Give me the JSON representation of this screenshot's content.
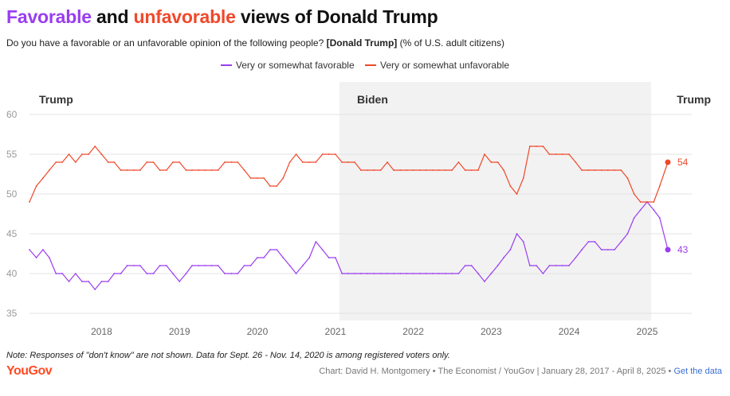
{
  "title": {
    "part1": "Favorable",
    "part2": " and ",
    "part3": "unfavorable",
    "part4": " views of Donald Trump"
  },
  "subtitle": {
    "pre": "Do you have a favorable or an unfavorable opinion of the following people? ",
    "bold": "[Donald Trump]",
    "post": " (% of U.S. adult citizens)"
  },
  "colors": {
    "favorable": "#9a3df0",
    "unfavorable": "#f0482a",
    "shade": "#f2f2f2",
    "grid": "#e3e3e3",
    "tick": "#9a9a9a"
  },
  "footer": {
    "note": "Note: Responses of \"don't know\" are not shown. Data for Sept. 26 - Nov. 14, 2020 is among registered voters only.",
    "brand": "YouGov",
    "credit": "Chart: David H. Montgomery • The Economist / YouGov | January 28, 2017 - April 8, 2025 • ",
    "link": "Get the data"
  },
  "chart_data": {
    "type": "line",
    "x_range": [
      "2017-01-28",
      "2025-04-08"
    ],
    "ylim": [
      35,
      60
    ],
    "y_ticks": [
      35,
      40,
      45,
      50,
      55,
      60
    ],
    "x_ticks": [
      "2018",
      "2019",
      "2020",
      "2021",
      "2022",
      "2023",
      "2024",
      "2025"
    ],
    "grid": true,
    "legend_position": "top",
    "periods": [
      {
        "label": "Trump",
        "start": "2017-01-28",
        "end": "2021-01-20",
        "shaded": false
      },
      {
        "label": "Biden",
        "start": "2021-01-20",
        "end": "2025-01-20",
        "shaded": true
      },
      {
        "label": "Trump",
        "start": "2025-01-20",
        "end": "2025-04-08",
        "shaded": false
      }
    ],
    "end_labels": {
      "favorable": "43",
      "unfavorable": "54"
    },
    "series": [
      {
        "name": "Very or somewhat favorable",
        "key": "favorable",
        "points": [
          [
            "2017-01-28",
            43
          ],
          [
            "2017-03-01",
            42
          ],
          [
            "2017-04-01",
            43
          ],
          [
            "2017-05-01",
            42
          ],
          [
            "2017-06-01",
            40
          ],
          [
            "2017-07-01",
            40
          ],
          [
            "2017-08-01",
            39
          ],
          [
            "2017-09-01",
            40
          ],
          [
            "2017-10-01",
            39
          ],
          [
            "2017-11-01",
            39
          ],
          [
            "2017-12-01",
            38
          ],
          [
            "2018-01-01",
            39
          ],
          [
            "2018-02-01",
            39
          ],
          [
            "2018-03-01",
            40
          ],
          [
            "2018-04-01",
            40
          ],
          [
            "2018-05-01",
            41
          ],
          [
            "2018-06-01",
            41
          ],
          [
            "2018-07-01",
            41
          ],
          [
            "2018-08-01",
            40
          ],
          [
            "2018-09-01",
            40
          ],
          [
            "2018-10-01",
            41
          ],
          [
            "2018-11-01",
            41
          ],
          [
            "2018-12-01",
            40
          ],
          [
            "2019-01-01",
            39
          ],
          [
            "2019-02-01",
            40
          ],
          [
            "2019-03-01",
            41
          ],
          [
            "2019-04-01",
            41
          ],
          [
            "2019-05-01",
            41
          ],
          [
            "2019-06-01",
            41
          ],
          [
            "2019-07-01",
            41
          ],
          [
            "2019-08-01",
            40
          ],
          [
            "2019-09-01",
            40
          ],
          [
            "2019-10-01",
            40
          ],
          [
            "2019-11-01",
            41
          ],
          [
            "2019-12-01",
            41
          ],
          [
            "2020-01-01",
            42
          ],
          [
            "2020-02-01",
            42
          ],
          [
            "2020-03-01",
            43
          ],
          [
            "2020-04-01",
            43
          ],
          [
            "2020-05-01",
            42
          ],
          [
            "2020-06-01",
            41
          ],
          [
            "2020-07-01",
            40
          ],
          [
            "2020-08-01",
            41
          ],
          [
            "2020-09-01",
            42
          ],
          [
            "2020-10-01",
            44
          ],
          [
            "2020-11-01",
            43
          ],
          [
            "2020-12-01",
            42
          ],
          [
            "2021-01-01",
            42
          ],
          [
            "2021-02-01",
            40
          ],
          [
            "2021-03-01",
            40
          ],
          [
            "2021-04-01",
            40
          ],
          [
            "2021-05-01",
            40
          ],
          [
            "2021-06-01",
            40
          ],
          [
            "2021-07-01",
            40
          ],
          [
            "2021-08-01",
            40
          ],
          [
            "2021-09-01",
            40
          ],
          [
            "2021-10-01",
            40
          ],
          [
            "2021-11-01",
            40
          ],
          [
            "2021-12-01",
            40
          ],
          [
            "2022-01-01",
            40
          ],
          [
            "2022-02-01",
            40
          ],
          [
            "2022-03-01",
            40
          ],
          [
            "2022-04-01",
            40
          ],
          [
            "2022-05-01",
            40
          ],
          [
            "2022-06-01",
            40
          ],
          [
            "2022-07-01",
            40
          ],
          [
            "2022-08-01",
            40
          ],
          [
            "2022-09-01",
            41
          ],
          [
            "2022-10-01",
            41
          ],
          [
            "2022-11-01",
            40
          ],
          [
            "2022-12-01",
            39
          ],
          [
            "2023-01-01",
            40
          ],
          [
            "2023-02-01",
            41
          ],
          [
            "2023-03-01",
            42
          ],
          [
            "2023-04-01",
            43
          ],
          [
            "2023-05-01",
            45
          ],
          [
            "2023-06-01",
            44
          ],
          [
            "2023-07-01",
            41
          ],
          [
            "2023-08-01",
            41
          ],
          [
            "2023-09-01",
            40
          ],
          [
            "2023-10-01",
            41
          ],
          [
            "2023-11-01",
            41
          ],
          [
            "2023-12-01",
            41
          ],
          [
            "2024-01-01",
            41
          ],
          [
            "2024-02-01",
            42
          ],
          [
            "2024-03-01",
            43
          ],
          [
            "2024-04-01",
            44
          ],
          [
            "2024-05-01",
            44
          ],
          [
            "2024-06-01",
            43
          ],
          [
            "2024-07-01",
            43
          ],
          [
            "2024-08-01",
            43
          ],
          [
            "2024-09-01",
            44
          ],
          [
            "2024-10-01",
            45
          ],
          [
            "2024-11-01",
            47
          ],
          [
            "2024-12-01",
            48
          ],
          [
            "2025-01-01",
            49
          ],
          [
            "2025-02-01",
            48
          ],
          [
            "2025-03-01",
            47
          ],
          [
            "2025-04-08",
            43
          ]
        ]
      },
      {
        "name": "Very or somewhat unfavorable",
        "key": "unfavorable",
        "points": [
          [
            "2017-01-28",
            49
          ],
          [
            "2017-03-01",
            51
          ],
          [
            "2017-04-01",
            52
          ],
          [
            "2017-05-01",
            53
          ],
          [
            "2017-06-01",
            54
          ],
          [
            "2017-07-01",
            54
          ],
          [
            "2017-08-01",
            55
          ],
          [
            "2017-09-01",
            54
          ],
          [
            "2017-10-01",
            55
          ],
          [
            "2017-11-01",
            55
          ],
          [
            "2017-12-01",
            56
          ],
          [
            "2018-01-01",
            55
          ],
          [
            "2018-02-01",
            54
          ],
          [
            "2018-03-01",
            54
          ],
          [
            "2018-04-01",
            53
          ],
          [
            "2018-05-01",
            53
          ],
          [
            "2018-06-01",
            53
          ],
          [
            "2018-07-01",
            53
          ],
          [
            "2018-08-01",
            54
          ],
          [
            "2018-09-01",
            54
          ],
          [
            "2018-10-01",
            53
          ],
          [
            "2018-11-01",
            53
          ],
          [
            "2018-12-01",
            54
          ],
          [
            "2019-01-01",
            54
          ],
          [
            "2019-02-01",
            53
          ],
          [
            "2019-03-01",
            53
          ],
          [
            "2019-04-01",
            53
          ],
          [
            "2019-05-01",
            53
          ],
          [
            "2019-06-01",
            53
          ],
          [
            "2019-07-01",
            53
          ],
          [
            "2019-08-01",
            54
          ],
          [
            "2019-09-01",
            54
          ],
          [
            "2019-10-01",
            54
          ],
          [
            "2019-11-01",
            53
          ],
          [
            "2019-12-01",
            52
          ],
          [
            "2020-01-01",
            52
          ],
          [
            "2020-02-01",
            52
          ],
          [
            "2020-03-01",
            51
          ],
          [
            "2020-04-01",
            51
          ],
          [
            "2020-05-01",
            52
          ],
          [
            "2020-06-01",
            54
          ],
          [
            "2020-07-01",
            55
          ],
          [
            "2020-08-01",
            54
          ],
          [
            "2020-09-01",
            54
          ],
          [
            "2020-10-01",
            54
          ],
          [
            "2020-11-01",
            55
          ],
          [
            "2020-12-01",
            55
          ],
          [
            "2021-01-01",
            55
          ],
          [
            "2021-02-01",
            54
          ],
          [
            "2021-03-01",
            54
          ],
          [
            "2021-04-01",
            54
          ],
          [
            "2021-05-01",
            53
          ],
          [
            "2021-06-01",
            53
          ],
          [
            "2021-07-01",
            53
          ],
          [
            "2021-08-01",
            53
          ],
          [
            "2021-09-01",
            54
          ],
          [
            "2021-10-01",
            53
          ],
          [
            "2021-11-01",
            53
          ],
          [
            "2021-12-01",
            53
          ],
          [
            "2022-01-01",
            53
          ],
          [
            "2022-02-01",
            53
          ],
          [
            "2022-03-01",
            53
          ],
          [
            "2022-04-01",
            53
          ],
          [
            "2022-05-01",
            53
          ],
          [
            "2022-06-01",
            53
          ],
          [
            "2022-07-01",
            53
          ],
          [
            "2022-08-01",
            54
          ],
          [
            "2022-09-01",
            53
          ],
          [
            "2022-10-01",
            53
          ],
          [
            "2022-11-01",
            53
          ],
          [
            "2022-12-01",
            55
          ],
          [
            "2023-01-01",
            54
          ],
          [
            "2023-02-01",
            54
          ],
          [
            "2023-03-01",
            53
          ],
          [
            "2023-04-01",
            51
          ],
          [
            "2023-05-01",
            50
          ],
          [
            "2023-06-01",
            52
          ],
          [
            "2023-07-01",
            56
          ],
          [
            "2023-08-01",
            56
          ],
          [
            "2023-09-01",
            56
          ],
          [
            "2023-10-01",
            55
          ],
          [
            "2023-11-01",
            55
          ],
          [
            "2023-12-01",
            55
          ],
          [
            "2024-01-01",
            55
          ],
          [
            "2024-02-01",
            54
          ],
          [
            "2024-03-01",
            53
          ],
          [
            "2024-04-01",
            53
          ],
          [
            "2024-05-01",
            53
          ],
          [
            "2024-06-01",
            53
          ],
          [
            "2024-07-01",
            53
          ],
          [
            "2024-08-01",
            53
          ],
          [
            "2024-09-01",
            53
          ],
          [
            "2024-10-01",
            52
          ],
          [
            "2024-11-01",
            50
          ],
          [
            "2024-12-01",
            49
          ],
          [
            "2025-01-01",
            49
          ],
          [
            "2025-02-01",
            49
          ],
          [
            "2025-03-01",
            51
          ],
          [
            "2025-04-08",
            54
          ]
        ]
      }
    ]
  }
}
